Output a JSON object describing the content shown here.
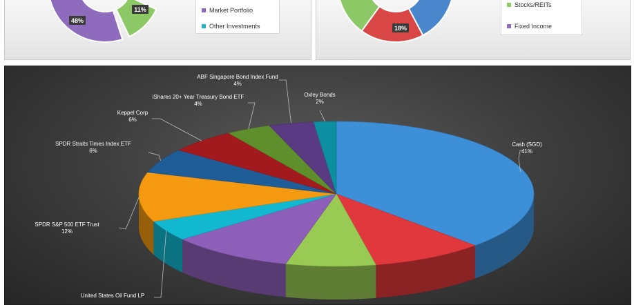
{
  "top_left_chart": {
    "chart_data": {
      "type": "pie",
      "slices": [
        {
          "label": "48%",
          "value": 48,
          "color": "#8e6bbd"
        },
        {
          "label": "11%",
          "value": 11,
          "color": "#8cc866"
        }
      ]
    },
    "legend": [
      {
        "name": "Market Portfolio",
        "color": "#8e6bbd"
      },
      {
        "name": "Other Investments",
        "color": "#23b3c5"
      }
    ]
  },
  "top_right_chart": {
    "chart_data": {
      "type": "pie",
      "slices": [
        {
          "label": "18%",
          "value": 18,
          "color": "#d94646"
        }
      ]
    },
    "legend": [
      {
        "name": "Stocks/REITs",
        "color": "#8cc866"
      },
      {
        "name": "Fixed Income",
        "color": "#8e6bbd"
      }
    ]
  },
  "main_chart": {
    "chart_data": {
      "type": "pie",
      "slices": [
        {
          "name": "Cash (SGD)",
          "value": 41,
          "pct": "41%",
          "color": "#3d8fd8"
        },
        {
          "name": "",
          "value": 10,
          "pct": "",
          "color": "#e0383c"
        },
        {
          "name": "",
          "value": 8,
          "pct": "",
          "color": "#99ca54"
        },
        {
          "name": "",
          "value": 11,
          "pct": "",
          "color": "#8e5fb8"
        },
        {
          "name": "United States Oil Fund LP",
          "value": 5,
          "pct": "",
          "color": "#12b8d0"
        },
        {
          "name": "SPDR S&P 500 ETF Trust",
          "value": 12,
          "pct": "12%",
          "color": "#f59a10"
        },
        {
          "name": "SPDR Straits Times Index ETF",
          "value": 6,
          "pct": "6%",
          "color": "#1f5d99"
        },
        {
          "name": "Keppel Corp",
          "value": 6,
          "pct": "6%",
          "color": "#a31a1e"
        },
        {
          "name": "iShares 20+ Year Treasury Bond ETF",
          "value": 4,
          "pct": "4%",
          "color": "#5f8f2c"
        },
        {
          "name": "ABF Singapore Bond Index Fund",
          "value": 4,
          "pct": "4%",
          "color": "#5a3a82"
        },
        {
          "name": "Oxley Bonds",
          "value": 2,
          "pct": "2%",
          "color": "#0d8fa1"
        }
      ]
    }
  }
}
